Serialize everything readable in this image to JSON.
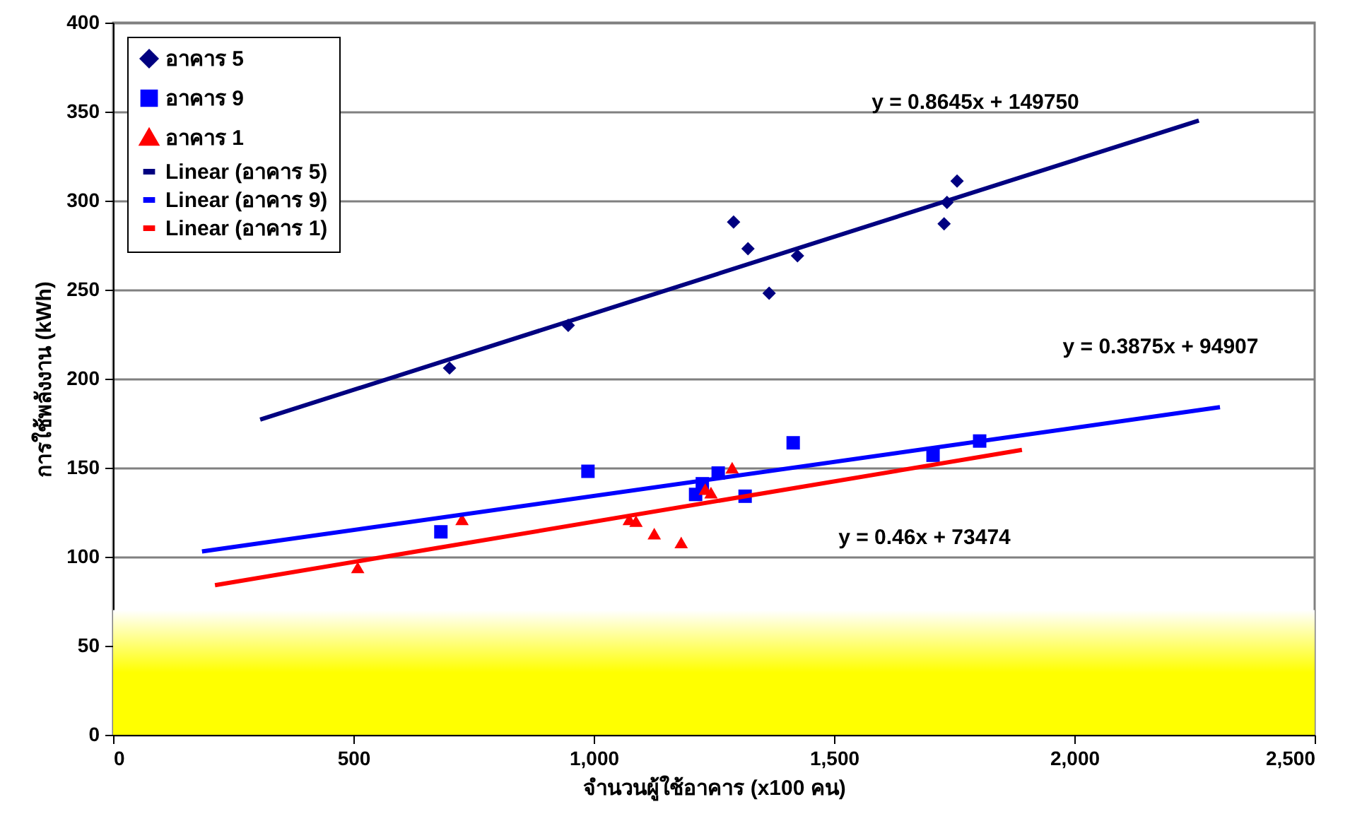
{
  "chart_data": {
    "type": "scatter",
    "xlabel": "จำนวนผู้ใช้อาคาร (x100 คน)",
    "ylabel": "การใช้พลังงาน (kWh)",
    "xlim": [
      0,
      2500
    ],
    "xticks": [
      0,
      500,
      {
        "value": 1000,
        "label": "1,000"
      },
      {
        "value": 1500,
        "label": "1,500"
      },
      {
        "value": 2000,
        "label": "2,000"
      },
      {
        "value": 2500,
        "label": "2,500"
      }
    ],
    "ylim": [
      0,
      400
    ],
    "yticks": [
      0,
      50,
      100,
      150,
      200,
      250,
      300,
      350,
      400
    ],
    "grid": "y",
    "legend": "top left",
    "series": [
      {
        "name": "อาคาร 5",
        "marker": "diamond",
        "color": "#000080",
        "x": [
          700,
          947,
          1291,
          1321,
          1365,
          1424,
          1729,
          1735,
          1756
        ],
        "values": [
          206,
          230,
          288,
          273,
          248,
          269,
          287,
          299,
          311
        ]
      },
      {
        "name": "อาคาร 9",
        "marker": "square",
        "color": "#0000ff",
        "x": [
          682,
          988,
          1212,
          1226,
          1259,
          1315,
          1415,
          1706,
          1803
        ],
        "values": [
          114,
          148,
          135,
          141,
          147,
          134,
          164,
          157,
          165
        ]
      },
      {
        "name": "อาคาร 1",
        "marker": "triangle",
        "color": "#ff0000",
        "x": [
          509,
          726,
          1074,
          1088,
          1126,
          1182,
          1232,
          1244,
          1288
        ],
        "values": [
          94,
          121,
          121,
          120,
          113,
          108,
          138,
          136,
          150
        ]
      },
      {
        "name": "Linear (อาคาร 5)",
        "type": "line",
        "marker": "none",
        "color": "#000080",
        "x": [
          306,
          2259
        ],
        "values": [
          177,
          345
        ]
      },
      {
        "name": "Linear (อาคาร 9)",
        "type": "line",
        "marker": "none",
        "color": "#0000ff",
        "x": [
          185,
          2303
        ],
        "values": [
          103,
          184
        ]
      },
      {
        "name": "Linear (อาคาร 1)",
        "type": "line",
        "marker": "none",
        "color": "#ff0000",
        "x": [
          212,
          1891
        ],
        "values": [
          84,
          160
        ]
      }
    ],
    "bands": [
      {
        "axis": "y",
        "from": 0,
        "to": 70,
        "color": "#ffff00"
      }
    ],
    "annotations": [
      "y = 0.8645x + 149750",
      "y = 0.3875x + 94907",
      "y = 0.46x + 73474"
    ]
  }
}
